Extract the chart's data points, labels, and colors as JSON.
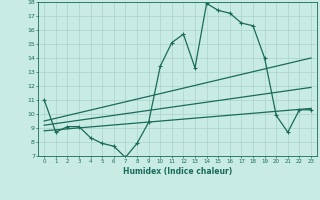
{
  "xlabel": "Humidex (Indice chaleur)",
  "bg_color": "#c8ebe3",
  "grid_color": "#aad4cc",
  "line_color": "#1a6b5a",
  "xlim": [
    -0.5,
    23.5
  ],
  "ylim": [
    7,
    18
  ],
  "xticks": [
    0,
    1,
    2,
    3,
    4,
    5,
    6,
    7,
    8,
    9,
    10,
    11,
    12,
    13,
    14,
    15,
    16,
    17,
    18,
    19,
    20,
    21,
    22,
    23
  ],
  "yticks": [
    7,
    8,
    9,
    10,
    11,
    12,
    13,
    14,
    15,
    16,
    17,
    18
  ],
  "line1_x": [
    0,
    1,
    2,
    3,
    4,
    5,
    6,
    7,
    8,
    9,
    10,
    11,
    12,
    13,
    14,
    15,
    16,
    17,
    18,
    19,
    20,
    21,
    22,
    23
  ],
  "line1_y": [
    11.0,
    8.7,
    9.1,
    9.1,
    8.3,
    7.9,
    7.7,
    6.9,
    7.9,
    9.4,
    13.4,
    15.1,
    15.7,
    13.3,
    17.9,
    17.4,
    17.2,
    16.5,
    16.3,
    14.0,
    9.9,
    8.7,
    10.3,
    10.3
  ],
  "line2_x": [
    0,
    23
  ],
  "line2_y": [
    9.5,
    14.0
  ],
  "line3_x": [
    0,
    23
  ],
  "line3_y": [
    9.2,
    11.9
  ],
  "line4_x": [
    0,
    23
  ],
  "line4_y": [
    8.8,
    10.4
  ],
  "marker_size": 2.5,
  "line_width": 0.9
}
